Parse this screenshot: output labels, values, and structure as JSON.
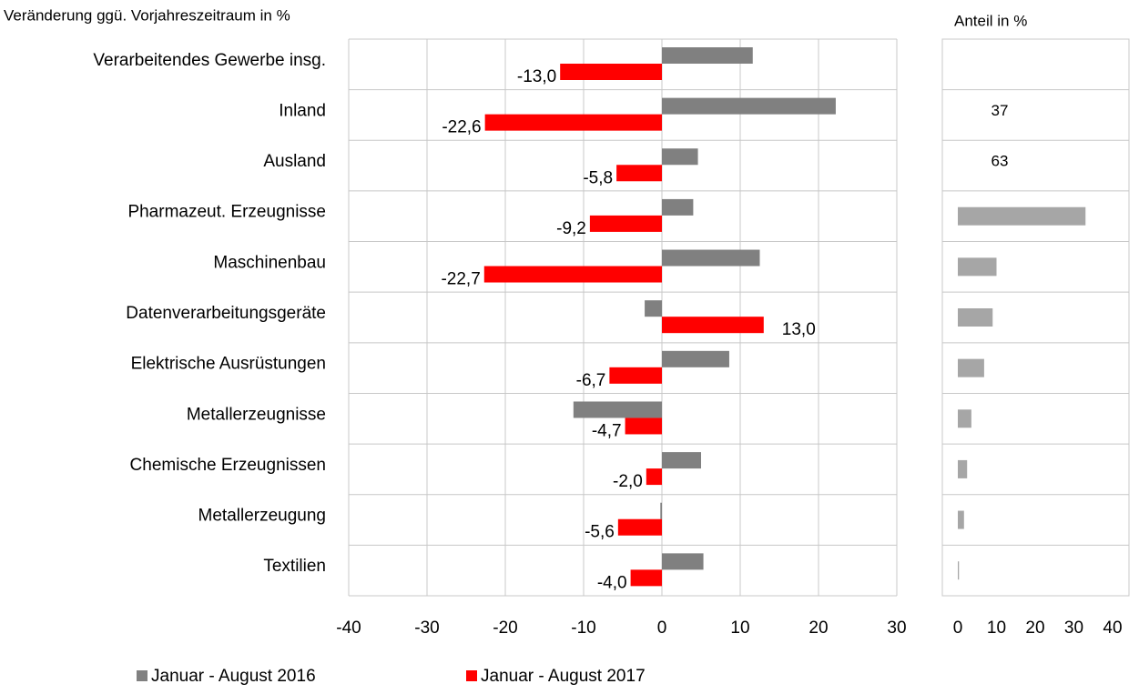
{
  "chart_data": [
    {
      "type": "bar",
      "orientation": "horizontal",
      "title": "Veränderung ggü. Vorjahreszeitraum in %",
      "categories": [
        "Verarbeitendes Gewerbe insg.",
        "Inland",
        "Ausland",
        "Pharmazeut. Erzeugnisse",
        "Maschinenbau",
        "Datenverarbeitungsgeräte",
        "Elektrische Ausrüstungen",
        "Metallerzeugnisse",
        "Chemische Erzeugnissen",
        "Metallerzeugung",
        "Textilien"
      ],
      "series": [
        {
          "name": "Januar - August 2016",
          "color": "#808080",
          "values": [
            11.6,
            22.2,
            4.6,
            4.0,
            12.5,
            -2.2,
            8.6,
            -11.3,
            5.0,
            -0.2,
            5.3
          ]
        },
        {
          "name": "Januar - August 2017",
          "color": "#ff0000",
          "values": [
            -13.0,
            -22.6,
            -5.8,
            -9.2,
            -22.7,
            13.0,
            -6.7,
            -4.7,
            -2.0,
            -5.6,
            -4.0
          ],
          "value_labels": [
            "-13,0",
            "-22,6",
            "-5,8",
            "-9,2",
            "-22,7",
            "13,0",
            "-6,7",
            "-4,7",
            "-2,0",
            "-5,6",
            "-4,0"
          ]
        }
      ],
      "xlim": [
        -40,
        30
      ],
      "xticks": [
        -40,
        -30,
        -20,
        -10,
        0,
        10,
        20,
        30
      ],
      "grid": true,
      "legend": "bottom"
    },
    {
      "type": "bar",
      "orientation": "horizontal",
      "title": "Anteil in %",
      "color": "#a6a6a6",
      "values": [
        null,
        37,
        63,
        33,
        10,
        9,
        6.8,
        3.5,
        2.4,
        1.6,
        0.3
      ],
      "value_labels": [
        null,
        "37",
        "63",
        null,
        null,
        null,
        null,
        null,
        null,
        null,
        null
      ],
      "xlim": [
        0,
        40
      ],
      "xticks": [
        0,
        10,
        20,
        30,
        40
      ]
    }
  ]
}
